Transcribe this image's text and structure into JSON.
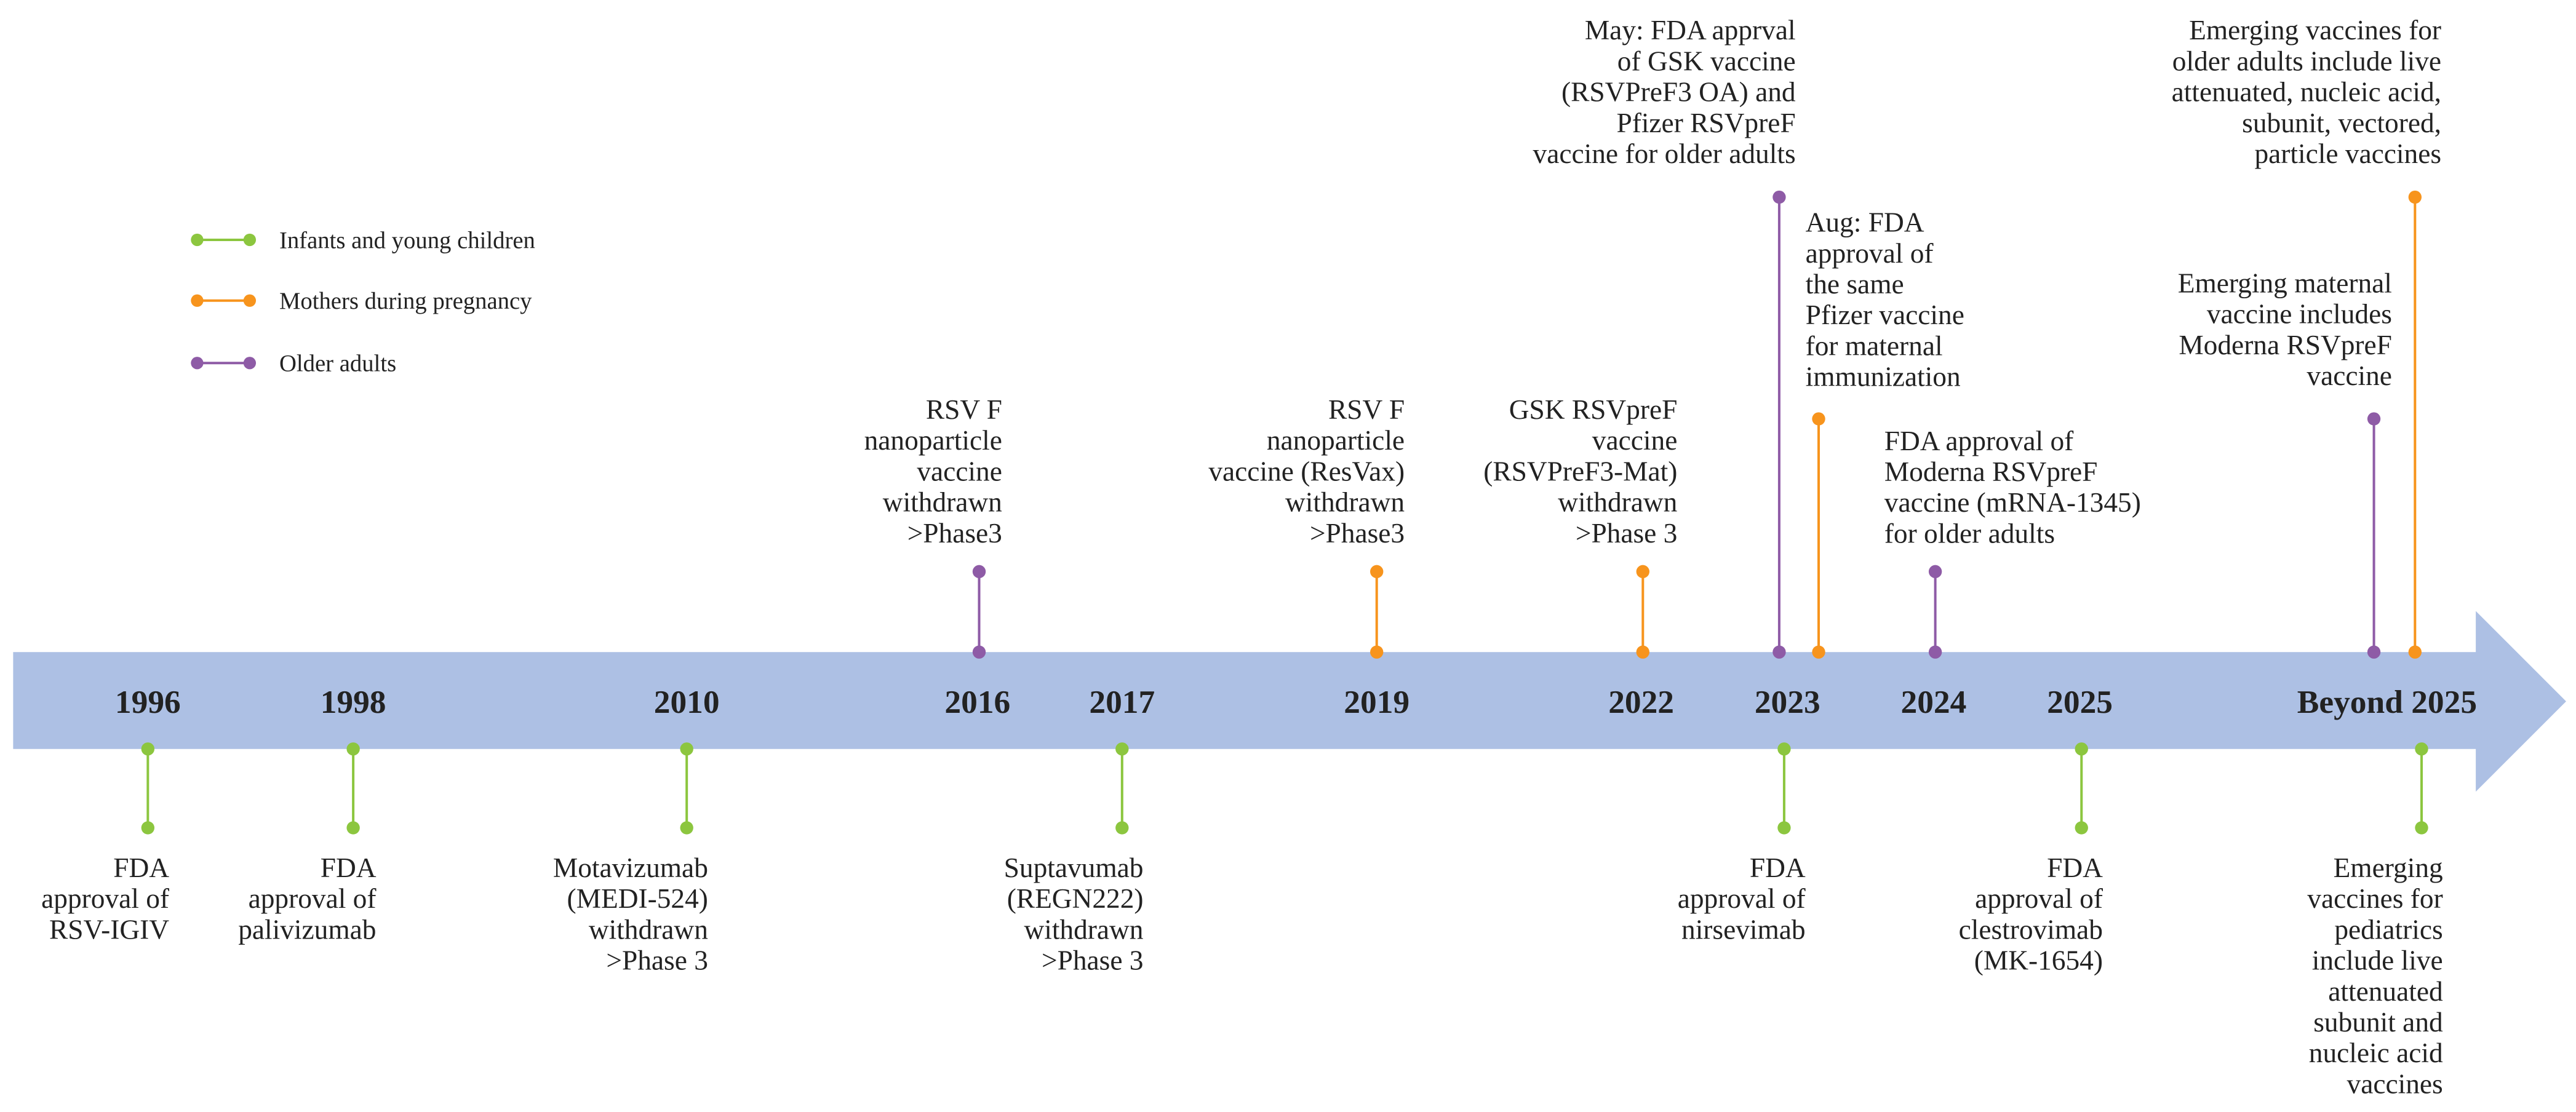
{
  "legend": [
    {
      "label": "Infants and young children",
      "color": "#8cc63f"
    },
    {
      "label": "Mothers during pregnancy",
      "color": "#f7941d"
    },
    {
      "label": "Older adults",
      "color": "#8e5ba6"
    }
  ],
  "years": [
    "1996",
    "1998",
    "2010",
    "2016",
    "2017",
    "2019",
    "2022",
    "2023",
    "2024",
    "2025",
    "Beyond 2025"
  ],
  "events": [
    {
      "color": "#8e5ba6",
      "lines": [
        "RSV F",
        "nanoparticle",
        "vaccine",
        "withdrawn",
        ">Phase3"
      ]
    },
    {
      "color": "#f7941d",
      "lines": [
        "RSV F",
        "nanoparticle",
        "vaccine (ResVax)",
        "withdrawn",
        ">Phase3"
      ]
    },
    {
      "color": "#f7941d",
      "lines": [
        "GSK RSVpreF",
        "vaccine",
        "(RSVPreF3-Mat)",
        "withdrawn",
        ">Phase 3"
      ]
    },
    {
      "color": "#8e5ba6",
      "lines": [
        "May: FDA apprval",
        "of GSK vaccine",
        "(RSVPreF3 OA) and",
        "Pfizer RSVpreF",
        "vaccine for older adults"
      ]
    },
    {
      "color": "#f7941d",
      "lines": [
        "Aug: FDA",
        "approval of",
        "the same",
        "Pfizer vaccine",
        "for maternal",
        "immunization"
      ]
    },
    {
      "color": "#8e5ba6",
      "lines": [
        "FDA approval of",
        "Moderna RSVpreF",
        "vaccine (mRNA-1345)",
        "for older adults"
      ]
    },
    {
      "color": "#8e5ba6",
      "lines": [
        "Emerging maternal",
        "vaccine includes",
        "Moderna RSVpreF",
        "vaccine"
      ]
    },
    {
      "color": "#f7941d",
      "lines": [
        "Emerging vaccines for",
        "older adults include live",
        "attenuated, nucleic acid,",
        "subunit, vectored,",
        "particle vaccines"
      ]
    },
    {
      "color": "#8cc63f",
      "lines": [
        "FDA",
        "approval of",
        "RSV-IGIV"
      ]
    },
    {
      "color": "#8cc63f",
      "lines": [
        "FDA",
        "approval of",
        "palivizumab"
      ]
    },
    {
      "color": "#8cc63f",
      "lines": [
        "Motavizumab",
        "(MEDI-524)",
        "withdrawn",
        ">Phase 3"
      ]
    },
    {
      "color": "#8cc63f",
      "lines": [
        "Suptavumab",
        "(REGN222)",
        "withdrawn",
        ">Phase 3"
      ]
    },
    {
      "color": "#8cc63f",
      "lines": [
        "FDA",
        "approval of",
        "nirsevimab"
      ]
    },
    {
      "color": "#8cc63f",
      "lines": [
        "FDA",
        "approval of",
        "clestrovimab",
        "(MK-1654)"
      ]
    },
    {
      "color": "#8cc63f",
      "lines": [
        "Emerging",
        "vaccines for",
        "pediatrics",
        "include live",
        "attenuated",
        "subunit and",
        "nucleic acid",
        "vaccines"
      ]
    }
  ]
}
